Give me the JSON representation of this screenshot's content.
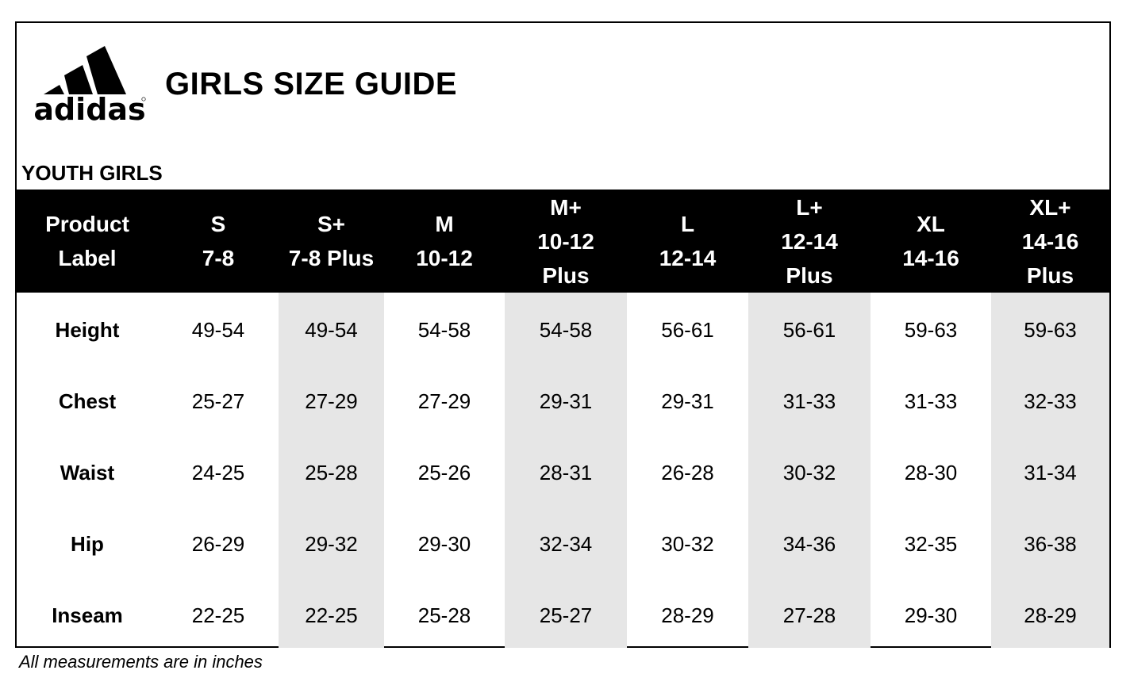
{
  "brand": {
    "logo_text": "adidas"
  },
  "title": "GIRLS SIZE GUIDE",
  "section": "YOUTH GIRLS",
  "table": {
    "header": [
      "Product\nLabel",
      "S\n7-8",
      "S+\n7-8 Plus",
      "M\n10-12",
      "M+\n10-12\nPlus",
      "L\n12-14",
      "L+\n12-14\nPlus",
      "XL\n14-16",
      "XL+\n14-16\nPlus"
    ],
    "rows": [
      {
        "label": "Height",
        "values": [
          "49-54",
          "49-54",
          "54-58",
          "54-58",
          "56-61",
          "56-61",
          "59-63",
          "59-63"
        ]
      },
      {
        "label": "Chest",
        "values": [
          "25-27",
          "27-29",
          "27-29",
          "29-31",
          "29-31",
          "31-33",
          "31-33",
          "32-33"
        ]
      },
      {
        "label": "Waist",
        "values": [
          "24-25",
          "25-28",
          "25-26",
          "28-31",
          "26-28",
          "30-32",
          "28-30",
          "31-34"
        ]
      },
      {
        "label": "Hip",
        "values": [
          "26-29",
          "29-32",
          "29-30",
          "32-34",
          "30-32",
          "34-36",
          "32-35",
          "36-38"
        ]
      },
      {
        "label": "Inseam",
        "values": [
          "22-25",
          "22-25",
          "25-28",
          "25-27",
          "28-29",
          "27-28",
          "29-30",
          "28-29"
        ]
      }
    ]
  },
  "footnote": "All measurements are in inches",
  "colors": {
    "header_bg": "#000000",
    "header_text": "#ffffff",
    "shaded_column": "#e6e6e6",
    "border": "#000000"
  }
}
